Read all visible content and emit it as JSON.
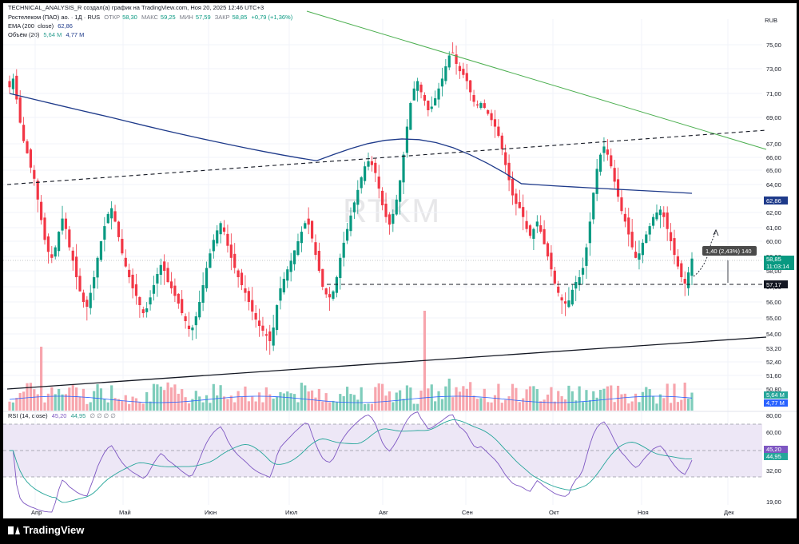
{
  "header": {
    "top_line": "TECHNICAL_ANALYSIS_R создал(а) график на TradingView.com, Ноя 20, 2025 12:46 UTC+3",
    "instrument": "Ростелеком (ПАО) ао. · 1Д · RUS",
    "ohlc": [
      {
        "k": "ОТКР",
        "v": "58,30"
      },
      {
        "k": "МАКС",
        "v": "59,25"
      },
      {
        "k": "МИН",
        "v": "57,59"
      },
      {
        "k": "ЗАКР",
        "v": "58,85"
      }
    ],
    "change": "+0,79 (+1,36%)",
    "ema_label": "EMA (200, close)",
    "ema_value": "62,86",
    "volume_label": "Объём (20)",
    "volume_values": [
      "5,64 M",
      "4,77 M"
    ],
    "rsi_label": "RSI (14, close)",
    "rsi_values": [
      "45,20",
      "44,95"
    ],
    "rsi_extra_icons": "∅ ∅ ∅ ∅"
  },
  "watermark": "RTKM",
  "currency": "RUB",
  "footer": {
    "brand": "TradingView"
  },
  "colors": {
    "up": "#089981",
    "down": "#f23645",
    "ema": "#1e3a8a",
    "resistance_line": "#4caf50",
    "rsi_line": "#7e57c2",
    "rsi_ma": "#26a69a",
    "rsi_band": "#ede7f6",
    "vol_up": "#7fcdbb",
    "vol_down": "#f7a5ad"
  },
  "chart_data": {
    "type": "candlestick",
    "timeframe": "1D",
    "x_ticks": [
      "Апр",
      "Май",
      "Июн",
      "Июл",
      "Авг",
      "Сен",
      "Окт",
      "Ноя",
      "Дек"
    ],
    "price_ticks": [
      "75,00",
      "73,00",
      "71,00",
      "69,00",
      "67,00",
      "66,00",
      "65,00",
      "64,00",
      "63,00",
      "62,00",
      "61,00",
      "60,00",
      "59,00",
      "58,00",
      "57,00",
      "56,00",
      "55,00",
      "54,00",
      "53,20",
      "52,40",
      "51,60",
      "50,80"
    ],
    "ylim": [
      50.5,
      75.5
    ],
    "closes": [
      71.5,
      72.2,
      70.5,
      68.6,
      67.2,
      66.3,
      65.2,
      64.4,
      62.9,
      61.5,
      60.1,
      59.3,
      58.9,
      59.6,
      60.7,
      61.6,
      60.9,
      59.6,
      58.7,
      57.6,
      56.7,
      56.0,
      55.7,
      56.6,
      57.6,
      58.9,
      60.0,
      61.1,
      61.9,
      62.3,
      61.4,
      60.3,
      59.2,
      58.3,
      57.6,
      56.9,
      56.4,
      55.8,
      55.3,
      55.6,
      56.3,
      57.1,
      57.8,
      58.4,
      58.0,
      57.3,
      56.9,
      56.4,
      55.9,
      55.3,
      54.8,
      54.3,
      54.4,
      55.1,
      56.0,
      57.1,
      58.2,
      59.2,
      60.1,
      60.8,
      61.3,
      60.7,
      59.7,
      58.9,
      58.2,
      57.6,
      57.1,
      56.6,
      56.0,
      55.4,
      54.9,
      54.5,
      54.2,
      53.9,
      53.6,
      54.4,
      55.8,
      56.9,
      57.5,
      58.1,
      58.7,
      59.4,
      60.0,
      60.7,
      61.3,
      61.2,
      60.2,
      59.1,
      58.0,
      57.0,
      56.5,
      56.3,
      56.7,
      57.6,
      58.9,
      59.9,
      60.9,
      61.8,
      62.7,
      63.6,
      64.5,
      65.3,
      65.7,
      65.4,
      64.8,
      63.7,
      62.5,
      61.7,
      61.2,
      61.9,
      62.9,
      64.3,
      66.2,
      68.3,
      70.2,
      71.4,
      72.0,
      71.1,
      70.4,
      69.6,
      69.9,
      70.6,
      71.4,
      72.2,
      73.2,
      74.1,
      74.3,
      73.4,
      72.8,
      72.5,
      72.0,
      71.1,
      70.3,
      70.0,
      70.2,
      69.8,
      69.3,
      68.8,
      68.3,
      67.6,
      66.6,
      65.4,
      64.3,
      63.2,
      62.6,
      62.3,
      61.7,
      60.9,
      60.4,
      60.9,
      61.4,
      60.7,
      59.8,
      59.0,
      58.1,
      57.2,
      56.6,
      56.1,
      55.9,
      56.1,
      56.8,
      57.3,
      57.6,
      58.2,
      59.6,
      61.4,
      63.4,
      65.1,
      66.2,
      66.8,
      66.2,
      65.3,
      64.2,
      63.1,
      62.1,
      61.4,
      60.5,
      59.6,
      58.9,
      59.2,
      59.9,
      60.5,
      61.1,
      61.7,
      62.0,
      62.2,
      61.7,
      60.9,
      60.0,
      59.1,
      58.3,
      57.6,
      57.2,
      57.9,
      58.85
    ],
    "ema200_y_start": 71.0,
    "ema200_y_end": 62.86,
    "annotations": {
      "last_price": "58,85",
      "countdown": "11:03:14",
      "support_label": "57,17",
      "ema_label": "62,86",
      "projection_label": "1,40 (2,43%) 140"
    },
    "volume_ticks": [
      "5,64 M",
      "4,77 M"
    ],
    "rsi_ticks": [
      "80,00",
      "60,00",
      "45,20",
      "44,95",
      "32,00",
      "19,00"
    ],
    "rsi_levels": [
      70,
      50,
      30
    ],
    "legend": "none"
  }
}
